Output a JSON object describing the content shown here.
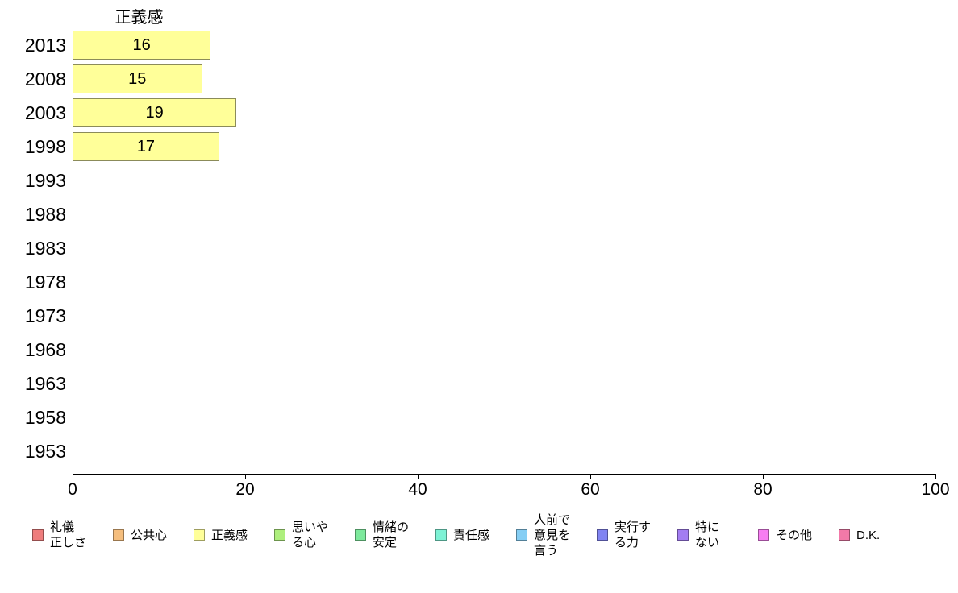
{
  "chart_data": {
    "type": "bar",
    "orientation": "horizontal",
    "title": "正義感",
    "categories": [
      "2013",
      "2008",
      "2003",
      "1998",
      "1993",
      "1988",
      "1983",
      "1978",
      "1973",
      "1968",
      "1963",
      "1958",
      "1953"
    ],
    "values": [
      16,
      15,
      19,
      17,
      null,
      null,
      null,
      null,
      null,
      null,
      null,
      null,
      null
    ],
    "xlabel": "",
    "ylabel": "",
    "xlim": [
      0,
      100
    ],
    "xticks": [
      0,
      20,
      40,
      60,
      80,
      100
    ],
    "grid": false,
    "bar_fill": "#FFFF99",
    "bar_border": "#8B8B5A",
    "legend_position": "bottom",
    "legend": [
      {
        "label": "礼儀\n正しさ",
        "color": "#EE7D7D"
      },
      {
        "label": "公共心",
        "color": "#F5BE7E"
      },
      {
        "label": "正義感",
        "color": "#FFFF99"
      },
      {
        "label": "思いや\nる心",
        "color": "#AEEF7D"
      },
      {
        "label": "情緒の\n安定",
        "color": "#7DE99C"
      },
      {
        "label": "責任感",
        "color": "#7DF2D5"
      },
      {
        "label": "人前で\n意見を\n言う",
        "color": "#85CEF4"
      },
      {
        "label": "実行す\nる力",
        "color": "#8184F2"
      },
      {
        "label": "特に\nない",
        "color": "#A37DF2"
      },
      {
        "label": "その他",
        "color": "#F77DF2"
      },
      {
        "label": "D.K.",
        "color": "#F279A8"
      }
    ]
  }
}
